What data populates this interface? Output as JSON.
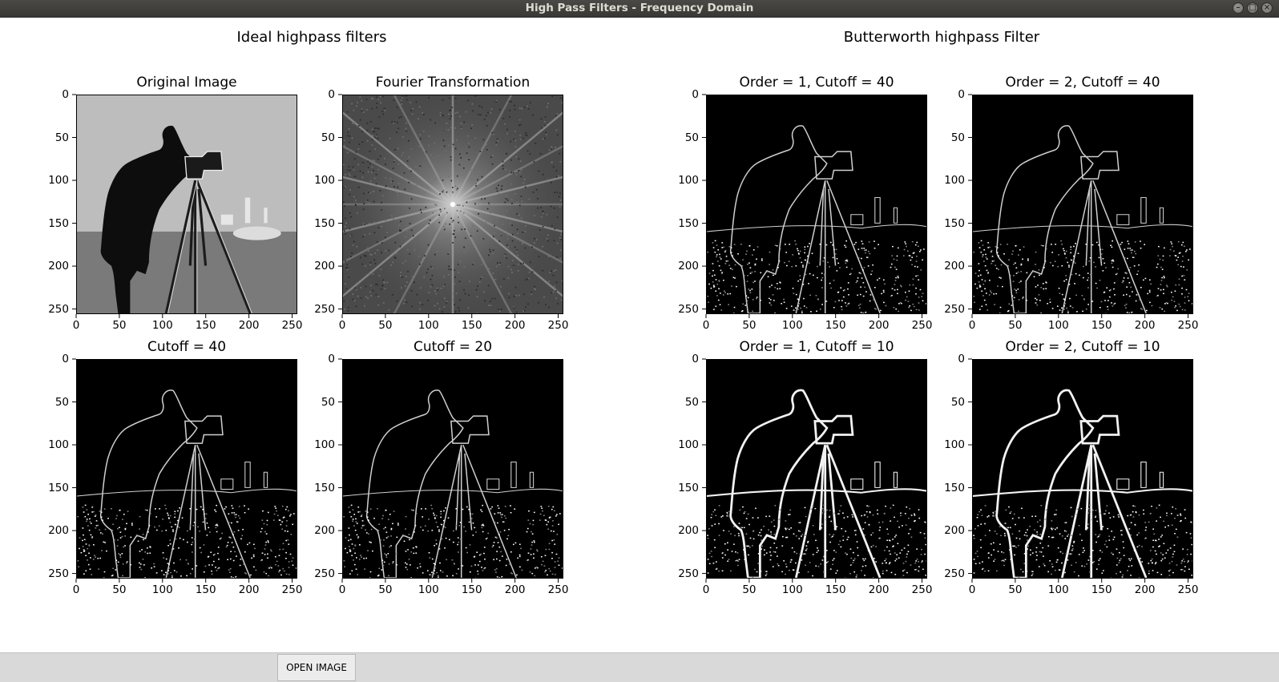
{
  "window": {
    "title": "High Pass Filters - Frequency Domain",
    "controls": [
      "minimize-icon",
      "maximize-icon",
      "close-icon"
    ]
  },
  "sections": {
    "ideal_title": "Ideal highpass filters",
    "butterworth_title": "Butterworth highpass Filter"
  },
  "axis_ticks": [
    "0",
    "50",
    "100",
    "150",
    "200",
    "250"
  ],
  "axis_tick_values": [
    0,
    50,
    100,
    150,
    200,
    250
  ],
  "image_size": [
    256,
    256
  ],
  "plots": [
    {
      "id": "original-image",
      "title": "Original Image",
      "kind": "original"
    },
    {
      "id": "fourier-transformation",
      "title": "Fourier Transformation",
      "kind": "spectrum"
    },
    {
      "id": "ideal-cutoff-40",
      "title": "Cutoff = 40",
      "kind": "highpass"
    },
    {
      "id": "ideal-cutoff-20",
      "title": "Cutoff = 20",
      "kind": "highpass"
    },
    {
      "id": "butterworth-order1-cutoff40",
      "title": "Order = 1, Cutoff = 40",
      "kind": "highpass"
    },
    {
      "id": "butterworth-order2-cutoff40",
      "title": "Order = 2, Cutoff = 40",
      "kind": "highpass"
    },
    {
      "id": "butterworth-order1-cutoff10",
      "title": "Order = 1, Cutoff = 10",
      "kind": "highpass-strong"
    },
    {
      "id": "butterworth-order2-cutoff10",
      "title": "Order = 2, Cutoff = 10",
      "kind": "highpass-strong"
    }
  ],
  "controls": {
    "open_image_label": "OPEN IMAGE"
  },
  "colors": {
    "titlebar": "#3c3b37",
    "toolbar": "#d9d9d9",
    "background": "#ffffff"
  }
}
